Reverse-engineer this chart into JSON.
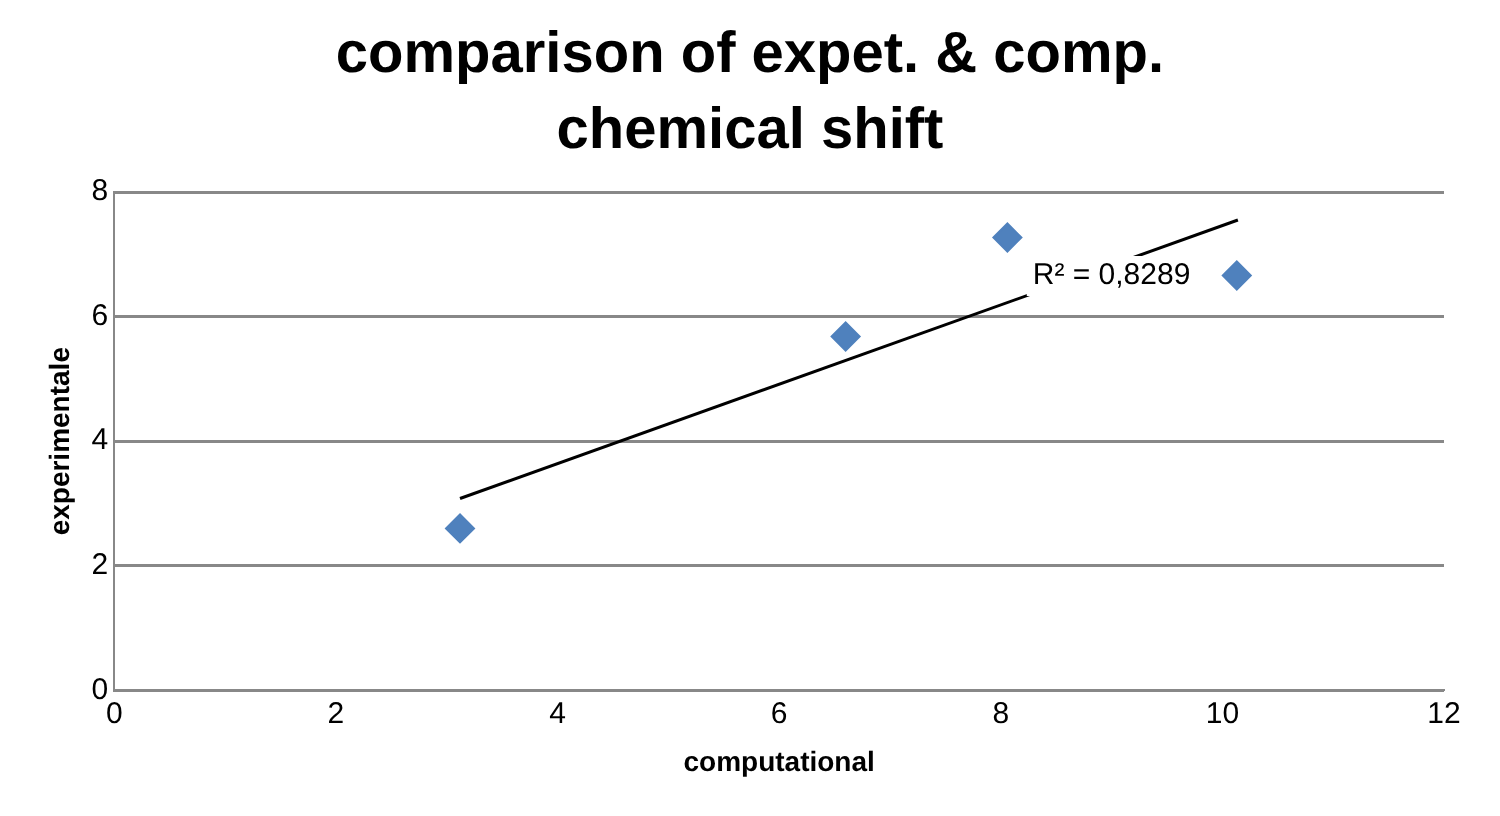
{
  "chart_data": {
    "type": "scatter",
    "title": "comparison of expet. & comp. chemical shift",
    "xlabel": "computational",
    "ylabel": "experimentale",
    "series": [
      {
        "type": "scatter",
        "color": "#4f81bd",
        "x": [
          3.12,
          6.6,
          8.06,
          10.13
        ],
        "values": [
          2.6,
          5.68,
          7.27,
          6.66
        ],
        "marker": "diamond"
      },
      {
        "type": "line",
        "color": "#000000",
        "x": [
          3.12,
          10.14
        ],
        "values": [
          3.08,
          7.55
        ],
        "marker": "none",
        "line_style": "solid"
      }
    ],
    "annotations": [
      {
        "text": "R² = 0,8289",
        "x": 9,
        "y": 6.65
      }
    ],
    "xlim": [
      0,
      12
    ],
    "xticks": [
      0,
      2,
      4,
      6,
      8,
      10,
      12
    ],
    "ylim": [
      0,
      8
    ],
    "yticks": [
      0,
      2,
      4,
      6,
      8
    ],
    "grid": "y",
    "legend": false
  }
}
